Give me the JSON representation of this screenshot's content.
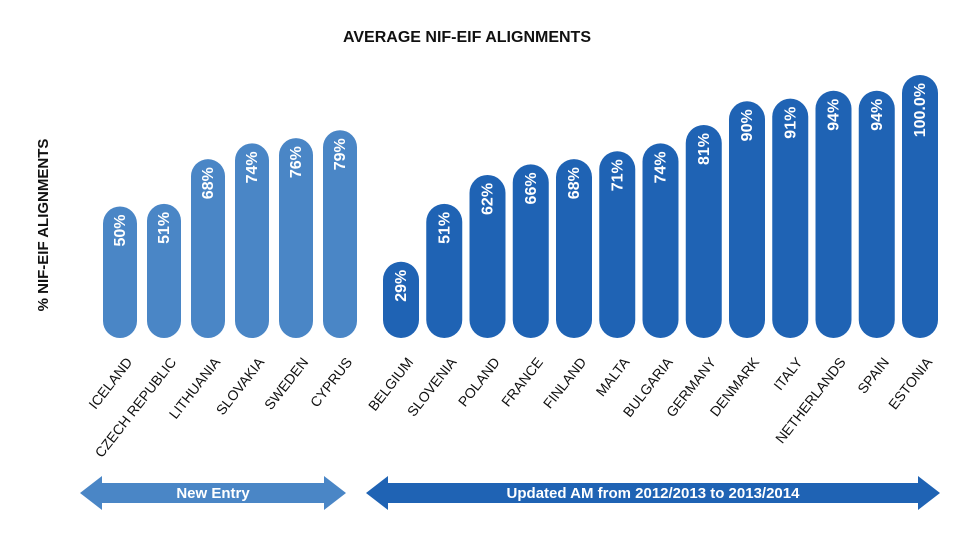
{
  "chart_data": {
    "type": "bar",
    "title": "AVERAGE NIF-EIF ALIGNMENTS",
    "y_label": "% NIF-EIF ALIGNMENTS",
    "ylim": [
      0,
      100
    ],
    "groups": [
      {
        "name": "New Entry",
        "color": "#4a86c6",
        "categories": [
          "ICELAND",
          "CZECH REPUBLIC",
          "LITHUANIA",
          "SLOVAKIA",
          "SWEDEN",
          "CYPRUS"
        ],
        "values": [
          50,
          51,
          68,
          74,
          76,
          79
        ],
        "value_labels": [
          "50%",
          "51%",
          "68%",
          "74%",
          "76%",
          "79%"
        ]
      },
      {
        "name": "Updated AM from 2012/2013 to 2013/2014",
        "color": "#1f63b4",
        "categories": [
          "BELGIUM",
          "SLOVENIA",
          "POLAND",
          "FRANCE",
          "FINLAND",
          "MALTA",
          "BULGARIA",
          "GERMANY",
          "DENMARK",
          "ITALY",
          "NETHERLANDS",
          "SPAIN",
          "ESTONIA"
        ],
        "values": [
          29,
          51,
          62,
          66,
          68,
          71,
          74,
          81,
          90,
          91,
          94,
          94,
          100.0
        ],
        "value_labels": [
          "29%",
          "51%",
          "62%",
          "66%",
          "68%",
          "71%",
          "74%",
          "81%",
          "90%",
          "91%",
          "94%",
          "94%",
          "100.0%"
        ]
      }
    ]
  }
}
